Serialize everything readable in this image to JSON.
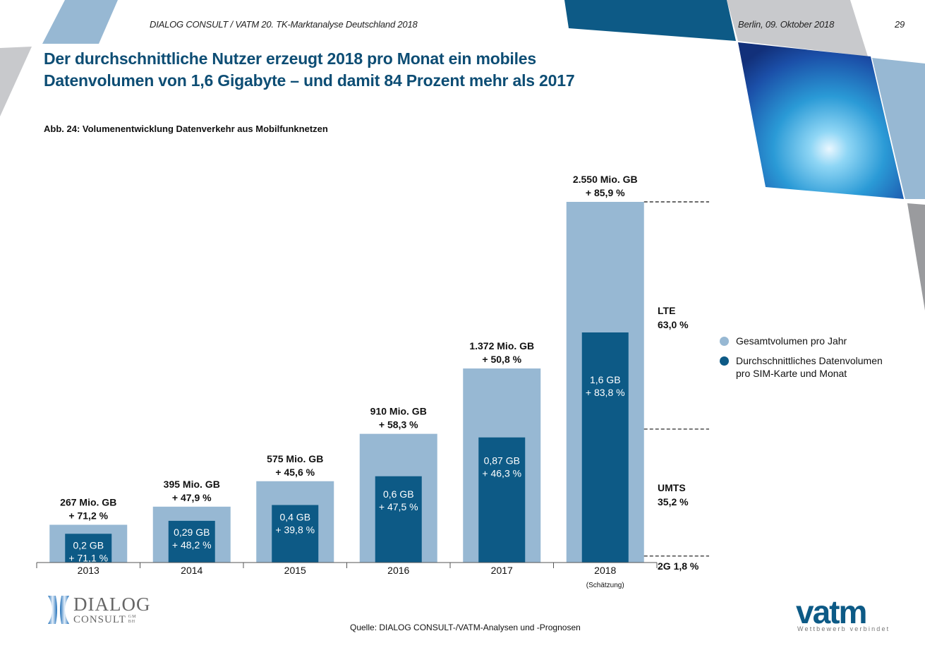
{
  "header": {
    "publication": "DIALOG CONSULT / VATM 20. TK-Marktanalyse Deutschland 2018",
    "date": "Berlin, 09. Oktober 2018",
    "page_number": "29"
  },
  "title": {
    "line1": "Der durchschnittliche Nutzer erzeugt 2018 pro Monat ein mobiles",
    "line2": "Datenvolumen von 1,6 Gigabyte – und damit 84 Prozent mehr als 2017"
  },
  "colors": {
    "light_blue": "#97b8d3",
    "dark_blue": "#0d5a86",
    "title_blue": "#0d4d74",
    "grey": "#c8c9cc"
  },
  "chart_data": {
    "type": "bar",
    "title": "Abb. 24: Volumenentwicklung Datenverkehr aus Mobilfunknetzen",
    "categories": [
      "2013",
      "2014",
      "2015",
      "2016",
      "2017",
      "2018"
    ],
    "category_notes": [
      "",
      "",
      "",
      "",
      "",
      "(Schätzung)"
    ],
    "series": [
      {
        "name": "Gesamtvolumen pro Jahr",
        "unit": "Mio. GB",
        "values": [
          267,
          395,
          575,
          910,
          1372,
          2550
        ],
        "labels": [
          "267 Mio. GB",
          "395 Mio. GB",
          "575 Mio. GB",
          "910 Mio. GB",
          "1.372 Mio. GB",
          "2.550 Mio. GB"
        ],
        "growth_labels": [
          "+ 71,2 %",
          "+ 47,9 %",
          "+ 45,6 %",
          "+ 58,3 %",
          "+ 50,8 %",
          "+ 85,9 %"
        ],
        "color": "#97b8d3"
      },
      {
        "name": "Durchschnittliches Datenvolumen pro SIM-Karte und Monat",
        "unit": "GB",
        "values": [
          0.2,
          0.29,
          0.4,
          0.6,
          0.87,
          1.6
        ],
        "labels": [
          "0,2 GB",
          "0,29 GB",
          "0,4 GB",
          "0,6 GB",
          "0,87 GB",
          "1,6 GB"
        ],
        "growth_labels": [
          "+ 71,1 %",
          "+ 48,2 %",
          "+ 39,8 %",
          "+ 47,5 %",
          "+ 46,3 %",
          "+ 83,8 %"
        ],
        "color": "#0d5a86"
      }
    ],
    "technology_split_2018": [
      {
        "name": "LTE",
        "share": 63.0,
        "label": "63,0 %"
      },
      {
        "name": "UMTS",
        "share": 35.2,
        "label": "35,2 %"
      },
      {
        "name": "2G",
        "share": 1.8,
        "label": "1,8 %"
      }
    ],
    "xlabel": "",
    "ylabel": "",
    "grid": false,
    "legend_position": "right"
  },
  "legend": [
    {
      "label": "Gesamtvolumen pro Jahr"
    },
    {
      "label": "Durchschnittliches Datenvolumen",
      "label2": "pro SIM-Karte und Monat"
    }
  ],
  "source": "Quelle: DIALOG CONSULT-/VATM-Analysen und -Prognosen",
  "logos": {
    "dialog_consult": {
      "line1": "DIALOG",
      "line2": "CONSULT",
      "suffix_top": "GM",
      "suffix_bottom": "BH"
    },
    "vatm": {
      "word": "vatm",
      "tagline": "Wettbewerb verbindet"
    }
  }
}
